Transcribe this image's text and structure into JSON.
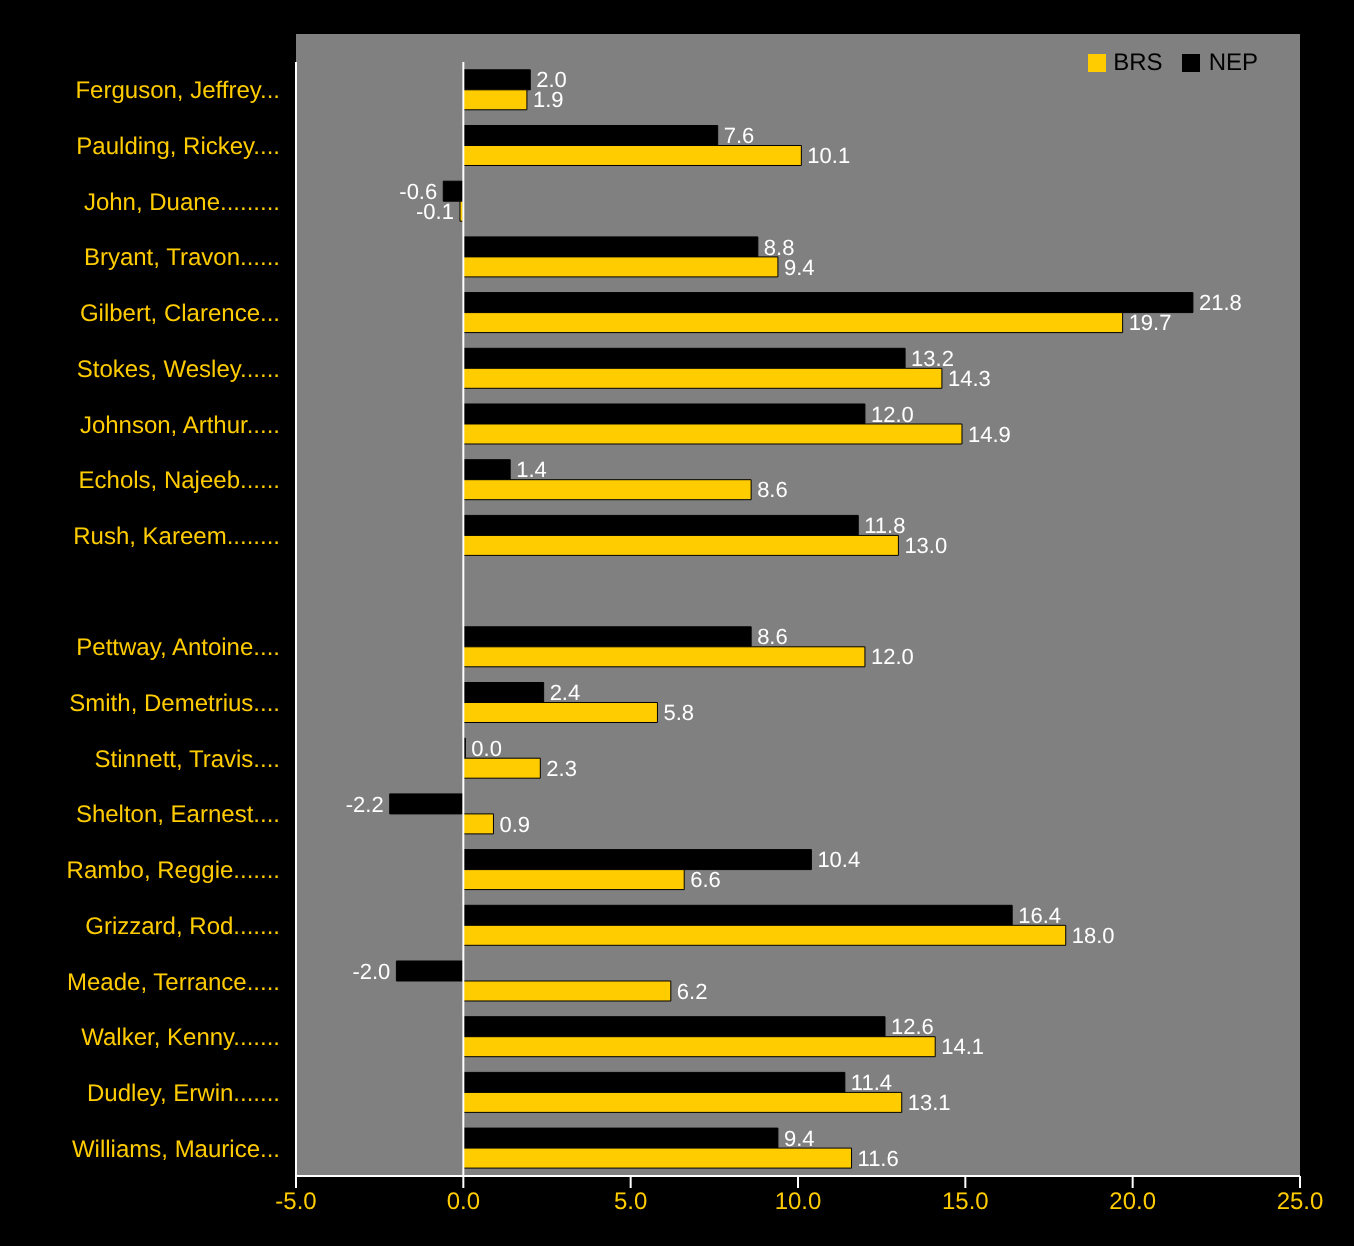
{
  "chart_data": {
    "type": "bar",
    "orientation": "horizontal",
    "categories": [
      "Ferguson, Jeffrey...",
      "Paulding, Rickey....",
      "John, Duane.........",
      "Bryant, Travon......",
      "Gilbert, Clarence...",
      "Stokes, Wesley......",
      "Johnson, Arthur.....",
      "Echols, Najeeb......",
      "Rush, Kareem........",
      null,
      "Pettway, Antoine....",
      "Smith, Demetrius....",
      "Stinnett, Travis....",
      "Shelton, Earnest....",
      "Rambo, Reggie.......",
      "Grizzard, Rod.......",
      "Meade, Terrance.....",
      "Walker, Kenny.......",
      "Dudley, Erwin.......",
      "Williams, Maurice..."
    ],
    "series": [
      {
        "name": "NEP",
        "color": "#000000",
        "values": [
          2.0,
          7.6,
          -0.6,
          8.8,
          21.8,
          13.2,
          12.0,
          1.4,
          11.8,
          null,
          8.6,
          2.4,
          0.0,
          -2.2,
          10.4,
          16.4,
          -2.0,
          12.6,
          11.4,
          9.4
        ],
        "value_labels": [
          "2.0",
          "7.6",
          "-0.6",
          "8.8",
          "21.8",
          "13.2",
          "12.0",
          "1.4",
          "11.8",
          null,
          "8.6",
          "2.4",
          "0.0",
          "-2.2",
          "10.4",
          "16.4",
          "-2.0",
          "12.6",
          "11.4",
          "9.4"
        ]
      },
      {
        "name": "BRS",
        "color": "#ffcc00",
        "values": [
          1.9,
          10.1,
          -0.1,
          9.4,
          19.7,
          14.3,
          14.9,
          8.6,
          13.0,
          null,
          12.0,
          5.8,
          2.3,
          0.9,
          6.6,
          18.0,
          6.2,
          14.1,
          13.1,
          11.6
        ],
        "value_labels": [
          "1.9",
          "10.1",
          "-0.1",
          "9.4",
          "19.7",
          "14.3",
          "14.9",
          "8.6",
          "13.0",
          null,
          "12.0",
          "5.8",
          "2.3",
          "0.9",
          "6.6",
          "18.0",
          "6.2",
          "14.1",
          "13.1",
          "11.6"
        ]
      }
    ],
    "xlim": [
      -5,
      25
    ],
    "xticks": [
      {
        "value": -5,
        "label": "-5.0"
      },
      {
        "value": 0,
        "label": "0.0"
      },
      {
        "value": 5,
        "label": "5.0"
      },
      {
        "value": 10,
        "label": "10.0"
      },
      {
        "value": 15,
        "label": "15.0"
      },
      {
        "value": 20,
        "label": "20.0"
      },
      {
        "value": 25,
        "label": "25.0"
      }
    ],
    "ref_lines": [
      {
        "axis": "x",
        "value": 0,
        "color": "#ffffff"
      }
    ],
    "grid": false,
    "legend": "top right"
  }
}
